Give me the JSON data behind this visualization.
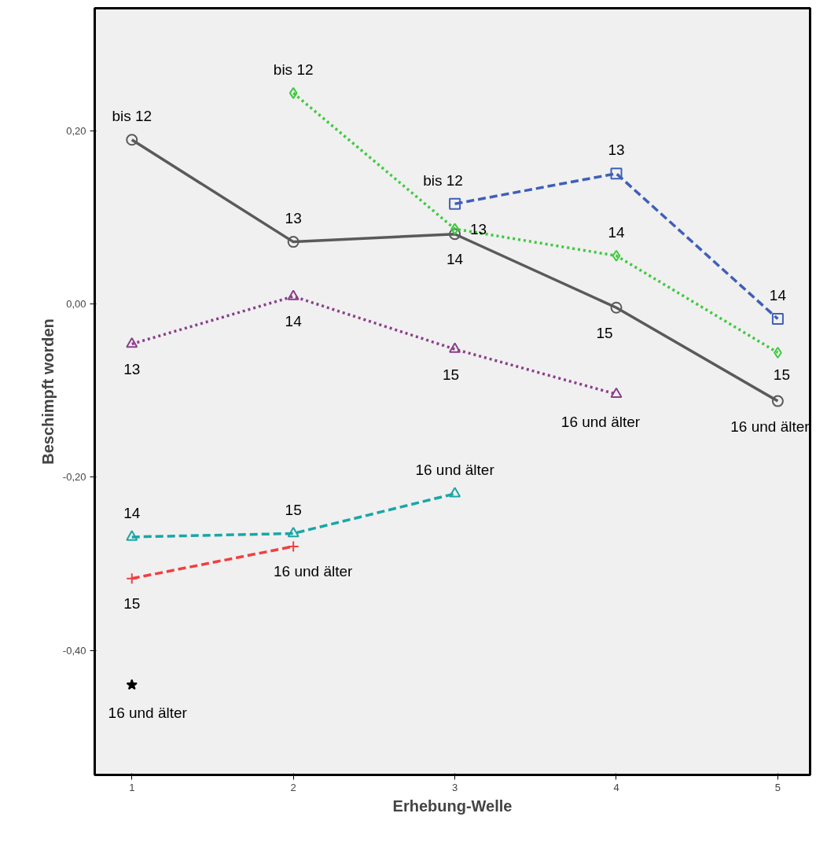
{
  "chart_data": {
    "type": "line",
    "xlabel": "Erhebung-Welle",
    "ylabel": "Beschimpft worden",
    "xlim": [
      0.77,
      5.2
    ],
    "ylim": [
      -0.544,
      0.342
    ],
    "xticks": [
      1,
      2,
      3,
      4,
      5
    ],
    "yticks": [
      {
        "value": -0.4,
        "label": "-0,40"
      },
      {
        "value": -0.2,
        "label": "-0,20"
      },
      {
        "value": 0,
        "label": "0,00"
      },
      {
        "value": 0.2,
        "label": "0,20"
      }
    ],
    "grid": false,
    "series": [
      {
        "color": "#5a5a5a",
        "marker": "circle",
        "line_style": "solid",
        "x": [
          1,
          2,
          3,
          4,
          5
        ],
        "values": [
          0.19,
          0.072,
          0.081,
          -0.004,
          -0.112
        ]
      },
      {
        "color": "#3fc93f",
        "marker": "diamond",
        "line_style": "dotted",
        "x": [
          2,
          3,
          4,
          5
        ],
        "values": [
          0.244,
          0.087,
          0.056,
          -0.056
        ]
      },
      {
        "color": "#3f5fb8",
        "marker": "square",
        "line_style": "dashed",
        "x": [
          3,
          4,
          5
        ],
        "values": [
          0.116,
          0.151,
          -0.017
        ]
      },
      {
        "color": "#8a3f8a",
        "marker": "triangle",
        "line_style": "dotted",
        "x": [
          1,
          2,
          3,
          4
        ],
        "values": [
          -0.046,
          0.009,
          -0.052,
          -0.104
        ]
      },
      {
        "color": "#19a6a6",
        "marker": "triangle",
        "line_style": "dashed",
        "x": [
          1,
          2,
          3
        ],
        "values": [
          -0.269,
          -0.265,
          -0.219
        ]
      },
      {
        "color": "#f04040",
        "marker": "cross",
        "line_style": "dashed",
        "x": [
          1,
          2
        ],
        "values": [
          -0.317,
          -0.28
        ]
      },
      {
        "color": "#000000",
        "marker": "star",
        "line_style": "solid",
        "x": [
          1
        ],
        "values": [
          -0.44
        ]
      }
    ],
    "annotations": [
      {
        "text": "bis 12",
        "x": 1,
        "y": 0.19
      },
      {
        "text": "13",
        "x": 2,
        "y": 0.072
      },
      {
        "text": "14",
        "x": 3,
        "y": 0.081
      },
      {
        "text": "15",
        "x": 4,
        "y": -0.004
      },
      {
        "text": "16 und älter",
        "x": 5,
        "y": -0.112
      },
      {
        "text": "bis 12",
        "x": 2,
        "y": 0.244
      },
      {
        "text": "13",
        "x": 3,
        "y": 0.087
      },
      {
        "text": "14",
        "x": 4,
        "y": 0.056
      },
      {
        "text": "15",
        "x": 5,
        "y": -0.056
      },
      {
        "text": "bis 12",
        "x": 3,
        "y": 0.116
      },
      {
        "text": "13",
        "x": 4,
        "y": 0.151
      },
      {
        "text": "14",
        "x": 5,
        "y": -0.017
      },
      {
        "text": "13",
        "x": 1,
        "y": -0.046
      },
      {
        "text": "14",
        "x": 2,
        "y": 0.009
      },
      {
        "text": "15",
        "x": 3,
        "y": -0.052
      },
      {
        "text": "16 und älter",
        "x": 4,
        "y": -0.104
      },
      {
        "text": "14",
        "x": 1,
        "y": -0.269
      },
      {
        "text": "15",
        "x": 2,
        "y": -0.265
      },
      {
        "text": "16 und älter",
        "x": 3,
        "y": -0.219
      },
      {
        "text": "15",
        "x": 1,
        "y": -0.317
      },
      {
        "text": "16 und älter",
        "x": 2,
        "y": -0.28
      },
      {
        "text": "16 und älter",
        "x": 1,
        "y": -0.44
      }
    ]
  }
}
